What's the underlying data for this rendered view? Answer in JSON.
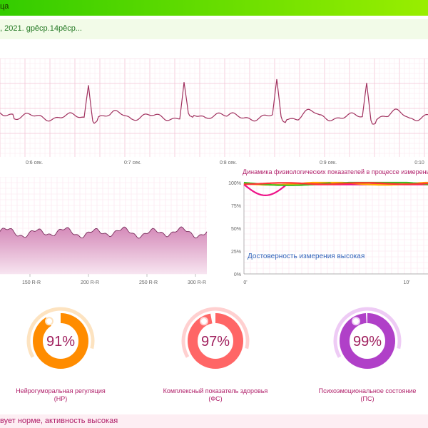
{
  "header": {
    "title": "ца"
  },
  "session": {
    "date_text": ", 2021. gpêcp.14pêcp..."
  },
  "ecg": {
    "tick_labels": [
      "0:6 сек.",
      "0:7 сек.",
      "0:8 сек.",
      "0:9 сек.",
      "0:10"
    ],
    "colors": {
      "line": "#a0305e",
      "grid_major": "#f2c3d4",
      "grid_minor": "#fbe6ee"
    }
  },
  "rr_chart": {
    "tick_labels": [
      "150 R-R",
      "200 R-R",
      "250 R-R",
      "300 R-R"
    ],
    "colors": {
      "fill_top": "#d489b8",
      "fill_bottom": "#f7e4f0",
      "line": "#7a2d5c"
    }
  },
  "dynamics": {
    "title": "Динамика физиологических показателей в процессе измерения",
    "y_ticks": [
      "100%",
      "75%",
      "50%",
      "25%",
      "0%"
    ],
    "x_ticks": [
      "0'",
      "10'"
    ],
    "note": "Достоверность измерения высокая",
    "series_colors": [
      "#ee1188",
      "#ffaa00",
      "#44bb22",
      "#ff3333"
    ]
  },
  "indicators": [
    {
      "value_text": "91%",
      "value": 91,
      "label_line1": "Нейрогуморальная регуляция",
      "label_line2": "(НР)",
      "color": "#ff8c00",
      "light_color": "#fde3c0"
    },
    {
      "value_text": "97%",
      "value": 97,
      "label_line1": "Комплексный показатель здоровья",
      "label_line2": "(ФС)",
      "color": "#ff6666",
      "light_color": "#ffd0d0"
    },
    {
      "value_text": "99%",
      "value": 99,
      "label_line1": "Психоэмоциональное состояние",
      "label_line2": "(ПС)",
      "color": "#b040c8",
      "light_color": "#eecbf5"
    }
  ],
  "footer": {
    "text": "вует норме, активность высокая"
  }
}
